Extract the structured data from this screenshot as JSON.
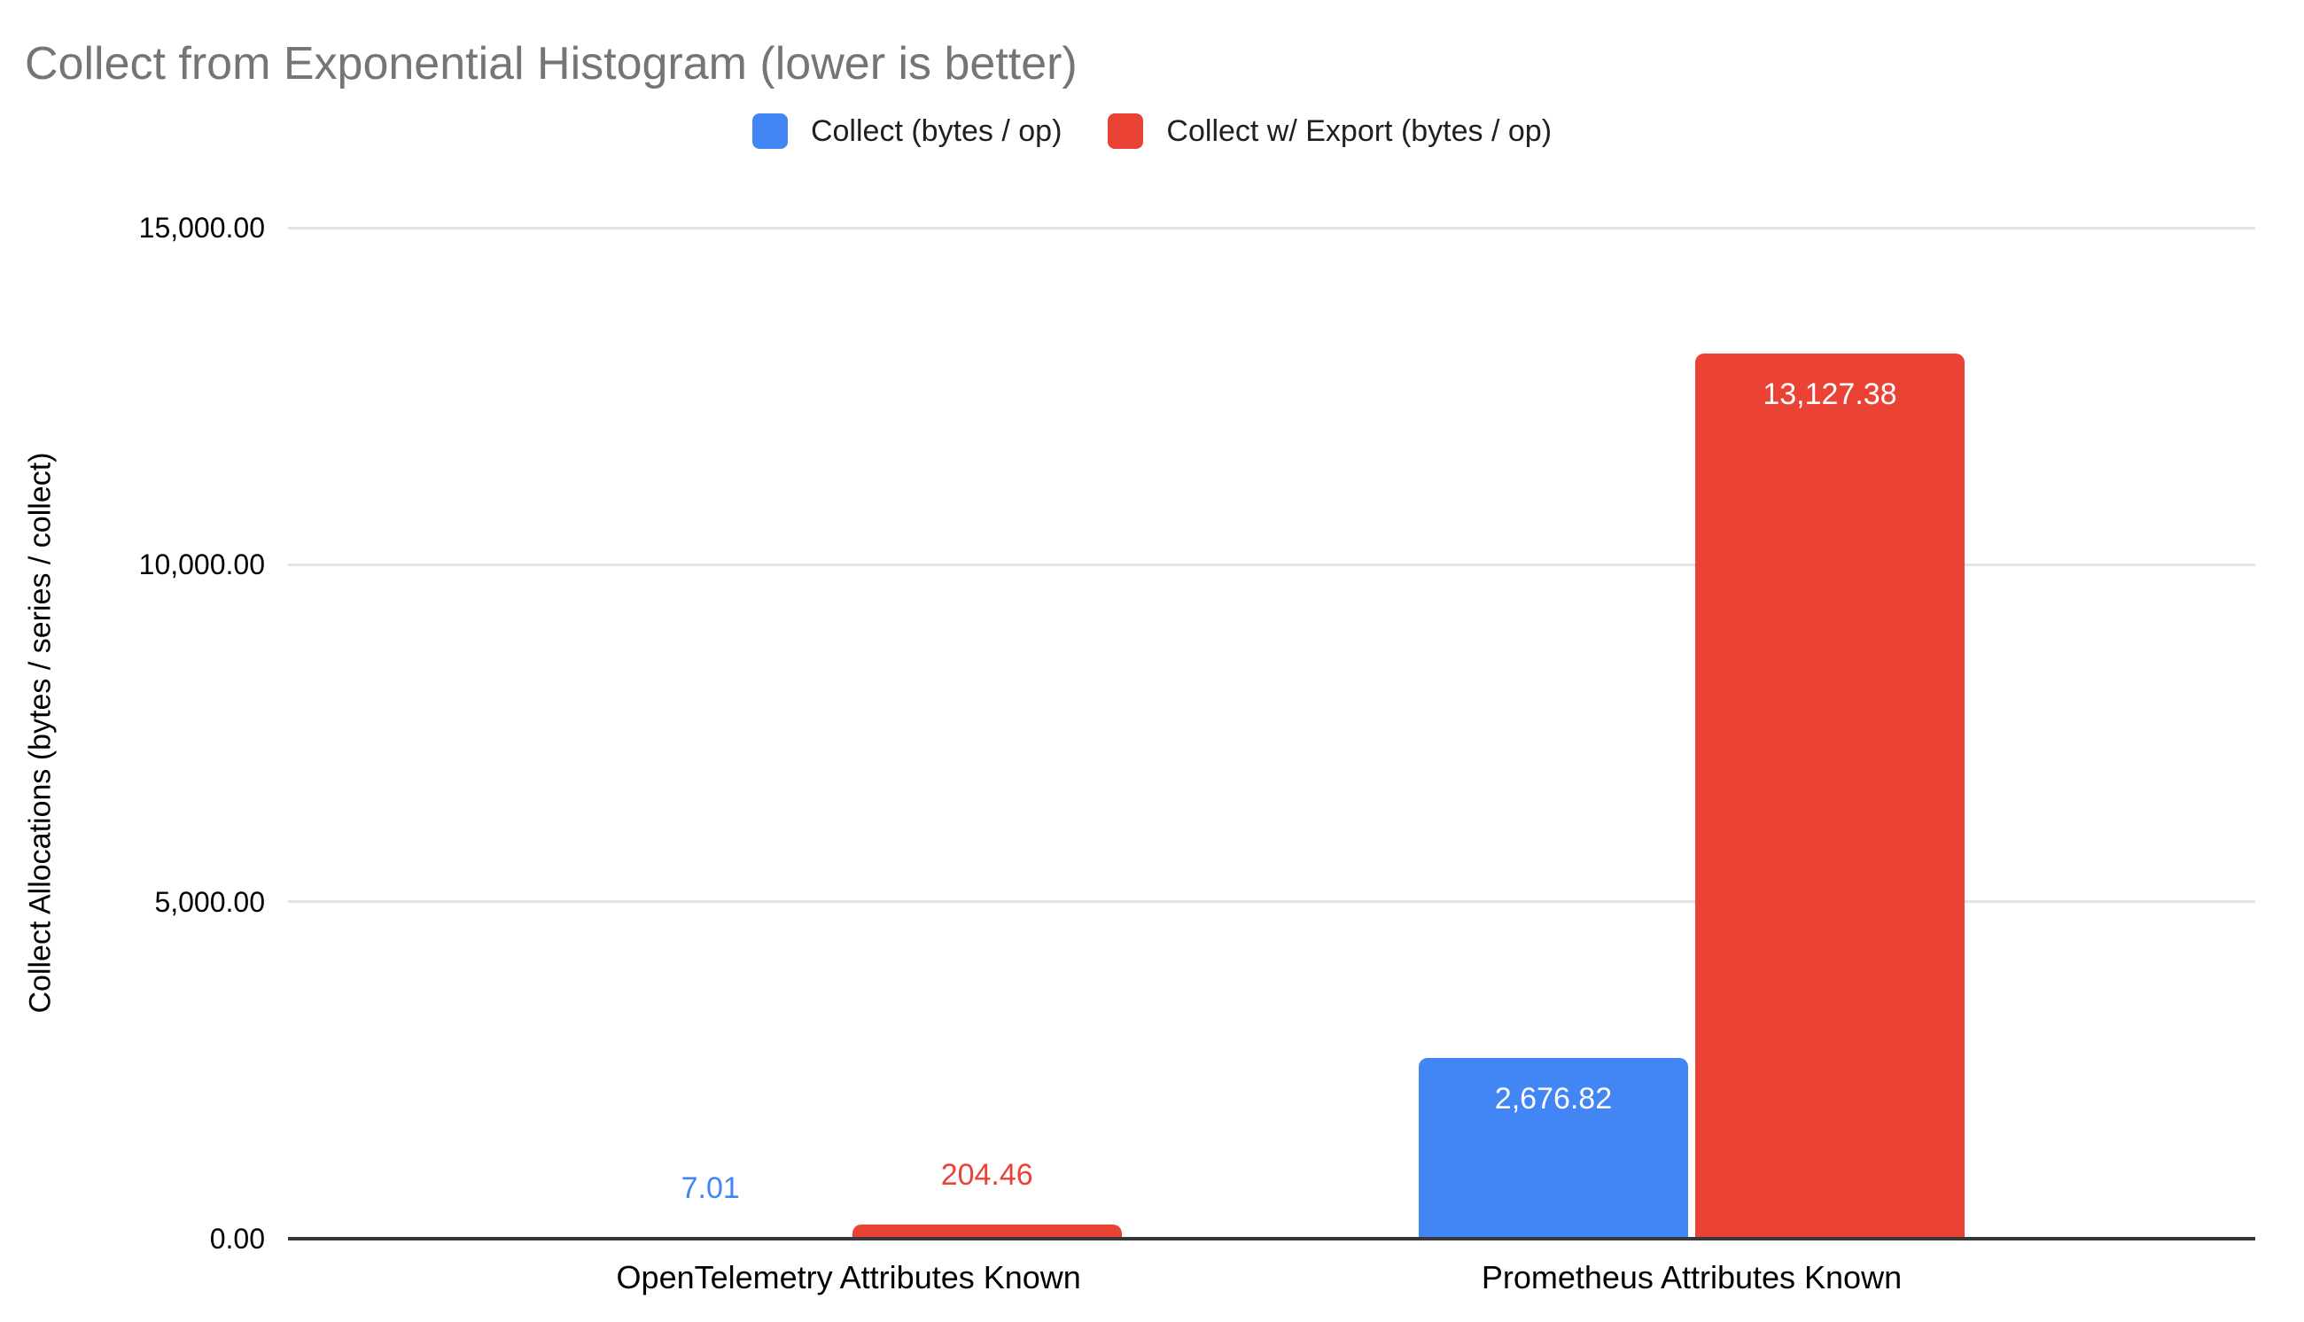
{
  "title": {
    "text": "Collect from Exponential Histogram (lower is better)",
    "color": "#757575"
  },
  "legend": {
    "items": [
      {
        "label": "Collect (bytes / op)",
        "color": "#4285F4"
      },
      {
        "label": "Collect w/ Export (bytes / op)",
        "color": "#EA4335"
      }
    ]
  },
  "chart_data": {
    "type": "bar",
    "title": "Collect from Exponential Histogram (lower is better)",
    "categories": [
      "OpenTelemetry Attributes Known",
      "Prometheus Attributes Known"
    ],
    "series": [
      {
        "name": "Collect (bytes / op)",
        "color": "#4285F4",
        "values": [
          7.01,
          2676.82
        ],
        "value_labels": [
          "7.01",
          "2,676.82"
        ]
      },
      {
        "name": "Collect w/ Export (bytes / op)",
        "color": "#EA4335",
        "values": [
          204.46,
          13127.38
        ],
        "value_labels": [
          "204.46",
          "13,127.38"
        ]
      }
    ],
    "xlabel": "",
    "ylabel": "Collect Allocations (bytes / series / collect)",
    "ylim": [
      0,
      15000
    ],
    "yticks": [
      {
        "value": 0,
        "label": "0.00"
      },
      {
        "value": 5000,
        "label": "5,000.00"
      },
      {
        "value": 10000,
        "label": "10,000.00"
      },
      {
        "value": 15000,
        "label": "15,000.00"
      }
    ],
    "grid": true,
    "legend_position": "top",
    "colors": {
      "gridline": "#e3e3e3",
      "baseline": "#383838",
      "axis_text": "#000000",
      "inside_label": "#ffffff"
    }
  }
}
